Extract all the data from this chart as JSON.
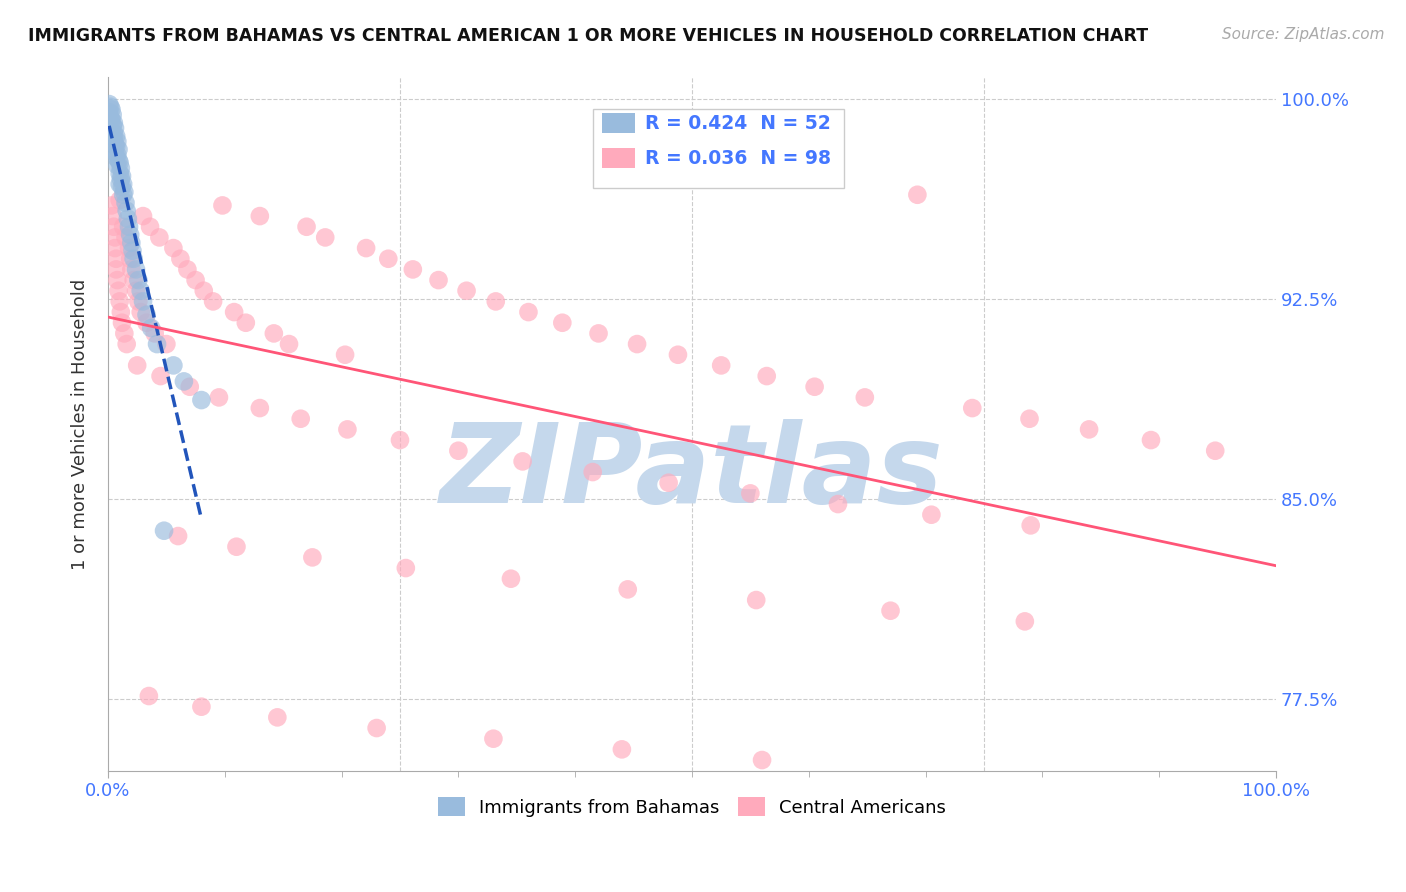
{
  "title": "IMMIGRANTS FROM BAHAMAS VS CENTRAL AMERICAN 1 OR MORE VEHICLES IN HOUSEHOLD CORRELATION CHART",
  "source_text": "Source: ZipAtlas.com",
  "ylabel": "1 or more Vehicles in Household",
  "xlim": [
    0.0,
    1.0
  ],
  "ylim": [
    0.748,
    1.008
  ],
  "yticks": [
    0.775,
    0.85,
    0.925,
    1.0
  ],
  "ytick_labels": [
    "77.5%",
    "85.0%",
    "92.5%",
    "100.0%"
  ],
  "xtick_labels": [
    "0.0%",
    "100.0%"
  ],
  "legend_r1": "R = 0.424",
  "legend_n1": "N = 52",
  "legend_r2": "R = 0.036",
  "legend_n2": "N = 98",
  "label1": "Immigrants from Bahamas",
  "label2": "Central Americans",
  "color1": "#99BBDD",
  "color2": "#FFAABC",
  "trendline1_color": "#2255BB",
  "trendline2_color": "#FF5577",
  "watermark": "ZIPatlas",
  "watermark_color": "#C5D8EC",
  "background_color": "#FFFFFF",
  "grid_color": "#CCCCCC",
  "bahamas_x": [
    0.001,
    0.001,
    0.002,
    0.002,
    0.003,
    0.003,
    0.003,
    0.004,
    0.004,
    0.005,
    0.005,
    0.005,
    0.006,
    0.006,
    0.006,
    0.007,
    0.007,
    0.007,
    0.008,
    0.008,
    0.008,
    0.009,
    0.009,
    0.01,
    0.01,
    0.01,
    0.011,
    0.011,
    0.012,
    0.012,
    0.013,
    0.013,
    0.014,
    0.015,
    0.016,
    0.017,
    0.018,
    0.019,
    0.02,
    0.021,
    0.022,
    0.024,
    0.026,
    0.028,
    0.03,
    0.033,
    0.037,
    0.042,
    0.048,
    0.056,
    0.065,
    0.08
  ],
  "bahamas_y": [
    0.998,
    0.995,
    0.997,
    0.993,
    0.996,
    0.992,
    0.988,
    0.994,
    0.99,
    0.987,
    0.991,
    0.985,
    0.989,
    0.983,
    0.98,
    0.986,
    0.982,
    0.978,
    0.984,
    0.979,
    0.975,
    0.981,
    0.977,
    0.976,
    0.972,
    0.968,
    0.974,
    0.97,
    0.971,
    0.967,
    0.968,
    0.964,
    0.965,
    0.961,
    0.958,
    0.955,
    0.952,
    0.949,
    0.946,
    0.943,
    0.94,
    0.936,
    0.932,
    0.928,
    0.924,
    0.919,
    0.914,
    0.908,
    0.838,
    0.9,
    0.894,
    0.887
  ],
  "central_x": [
    0.003,
    0.004,
    0.005,
    0.006,
    0.006,
    0.007,
    0.007,
    0.008,
    0.009,
    0.01,
    0.01,
    0.011,
    0.012,
    0.013,
    0.014,
    0.015,
    0.016,
    0.018,
    0.019,
    0.02,
    0.022,
    0.024,
    0.026,
    0.028,
    0.03,
    0.033,
    0.036,
    0.04,
    0.044,
    0.05,
    0.056,
    0.062,
    0.068,
    0.075,
    0.082,
    0.09,
    0.098,
    0.108,
    0.118,
    0.13,
    0.142,
    0.155,
    0.17,
    0.186,
    0.203,
    0.221,
    0.24,
    0.261,
    0.283,
    0.307,
    0.332,
    0.36,
    0.389,
    0.42,
    0.453,
    0.488,
    0.525,
    0.564,
    0.605,
    0.648,
    0.693,
    0.74,
    0.789,
    0.84,
    0.893,
    0.948,
    0.025,
    0.045,
    0.07,
    0.095,
    0.13,
    0.165,
    0.205,
    0.25,
    0.3,
    0.355,
    0.415,
    0.48,
    0.55,
    0.625,
    0.705,
    0.79,
    0.06,
    0.11,
    0.175,
    0.255,
    0.345,
    0.445,
    0.555,
    0.67,
    0.785,
    0.035,
    0.08,
    0.145,
    0.23,
    0.33,
    0.44,
    0.56
  ],
  "central_y": [
    0.96,
    0.956,
    0.952,
    0.948,
    0.944,
    0.94,
    0.936,
    0.932,
    0.928,
    0.962,
    0.924,
    0.92,
    0.916,
    0.952,
    0.912,
    0.948,
    0.908,
    0.944,
    0.94,
    0.936,
    0.932,
    0.928,
    0.924,
    0.92,
    0.956,
    0.916,
    0.952,
    0.912,
    0.948,
    0.908,
    0.944,
    0.94,
    0.936,
    0.932,
    0.928,
    0.924,
    0.96,
    0.92,
    0.916,
    0.956,
    0.912,
    0.908,
    0.952,
    0.948,
    0.904,
    0.944,
    0.94,
    0.936,
    0.932,
    0.928,
    0.924,
    0.92,
    0.916,
    0.912,
    0.908,
    0.904,
    0.9,
    0.896,
    0.892,
    0.888,
    0.964,
    0.884,
    0.88,
    0.876,
    0.872,
    0.868,
    0.9,
    0.896,
    0.892,
    0.888,
    0.884,
    0.88,
    0.876,
    0.872,
    0.868,
    0.864,
    0.86,
    0.856,
    0.852,
    0.848,
    0.844,
    0.84,
    0.836,
    0.832,
    0.828,
    0.824,
    0.82,
    0.816,
    0.812,
    0.808,
    0.804,
    0.776,
    0.772,
    0.768,
    0.764,
    0.76,
    0.756,
    0.752
  ]
}
